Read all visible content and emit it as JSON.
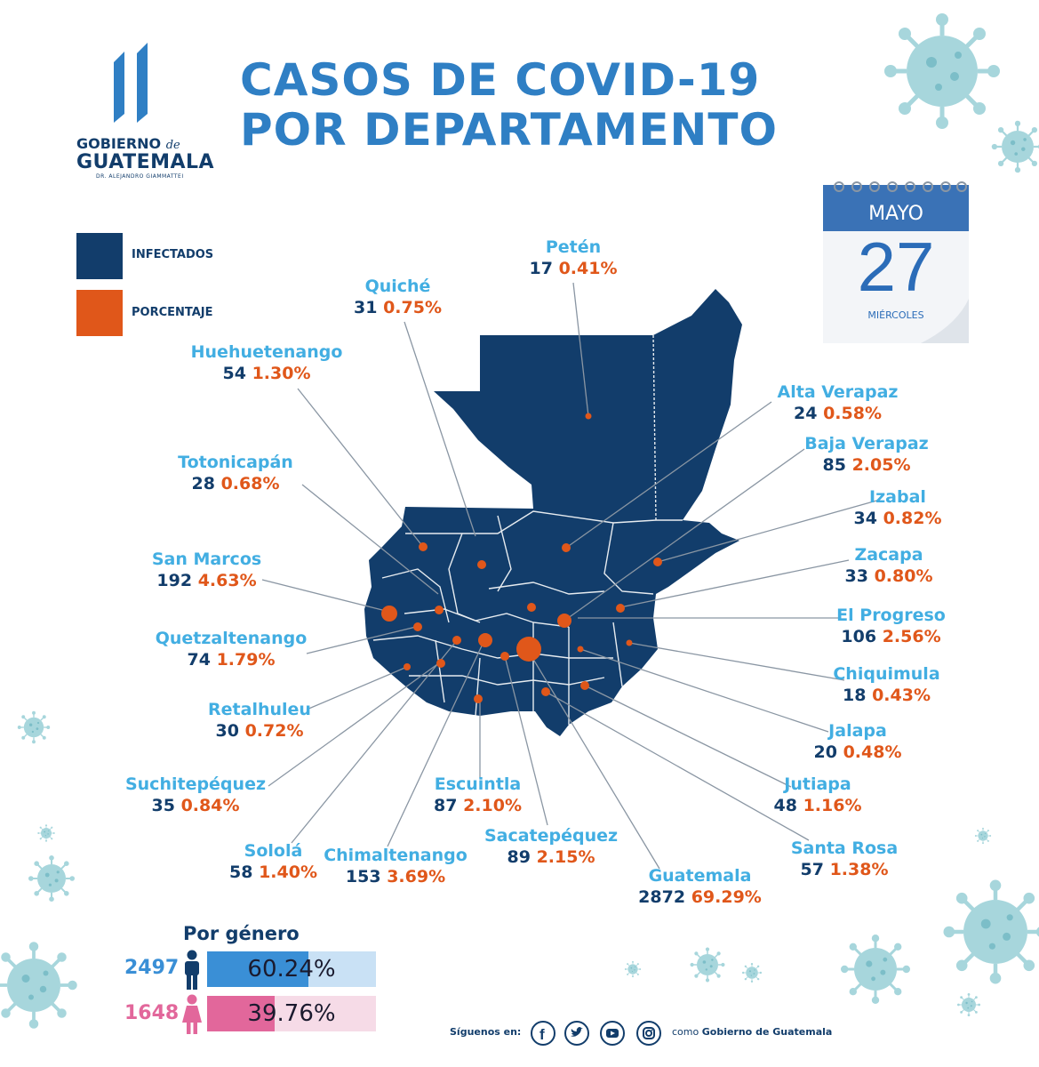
{
  "title": {
    "line1": "CASOS DE COVID-19",
    "line2": "POR DEPARTAMENTO"
  },
  "logo": {
    "line1": "GOBIERNO",
    "line1_small": "de",
    "line2": "GUATEMALA",
    "line3": "DR. ALEJANDRO GIAMMATTEI"
  },
  "legend": {
    "infected": {
      "label": "INFECTADOS",
      "color": "#123d6b"
    },
    "percent": {
      "label": "PORCENTAJE",
      "color": "#e0571a"
    }
  },
  "calendar": {
    "month": "MAYO",
    "day": "27",
    "weekday": "MIÉRCOLES"
  },
  "departments": [
    {
      "name": "Petén",
      "infected": "17",
      "percent": "0.41%"
    },
    {
      "name": "Quiché",
      "infected": "31",
      "percent": "0.75%"
    },
    {
      "name": "Huehuetenango",
      "infected": "54",
      "percent": "1.30%"
    },
    {
      "name": "Totonicapán",
      "infected": "28",
      "percent": "0.68%"
    },
    {
      "name": "San Marcos",
      "infected": "192",
      "percent": "4.63%"
    },
    {
      "name": "Quetzaltenango",
      "infected": "74",
      "percent": "1.79%"
    },
    {
      "name": "Retalhuleu",
      "infected": "30",
      "percent": "0.72%"
    },
    {
      "name": "Suchitepéquez",
      "infected": "35",
      "percent": "0.84%"
    },
    {
      "name": "Sololá",
      "infected": "58",
      "percent": "1.40%"
    },
    {
      "name": "Chimaltenango",
      "infected": "153",
      "percent": "3.69%"
    },
    {
      "name": "Escuintla",
      "infected": "87",
      "percent": "2.10%"
    },
    {
      "name": "Sacatepéquez",
      "infected": "89",
      "percent": "2.15%"
    },
    {
      "name": "Guatemala",
      "infected": "2872",
      "percent": "69.29%"
    },
    {
      "name": "Santa Rosa",
      "infected": "57",
      "percent": "1.38%"
    },
    {
      "name": "Jutiapa",
      "infected": "48",
      "percent": "1.16%"
    },
    {
      "name": "Jalapa",
      "infected": "20",
      "percent": "0.48%"
    },
    {
      "name": "Chiquimula",
      "infected": "18",
      "percent": "0.43%"
    },
    {
      "name": "El Progreso",
      "infected": "106",
      "percent": "2.56%"
    },
    {
      "name": "Zacapa",
      "infected": "33",
      "percent": "0.80%"
    },
    {
      "name": "Izabal",
      "infected": "34",
      "percent": "0.82%"
    },
    {
      "name": "Baja Verapaz",
      "infected": "85",
      "percent": "2.05%"
    },
    {
      "name": "Alta Verapaz",
      "infected": "24",
      "percent": "0.58%"
    }
  ],
  "gender": {
    "title": "Por género",
    "male": {
      "count": "2497",
      "percent_label": "60.24%",
      "fraction": 0.6024,
      "color": "#3a8fd6"
    },
    "female": {
      "count": "1648",
      "percent_label": "39.76%",
      "fraction": 0.3976,
      "color": "#e2679b"
    }
  },
  "social": {
    "label": "Síguenos en:",
    "como": "como",
    "account": "Gobierno de Guatemala",
    "icons": [
      "facebook-icon",
      "twitter-icon",
      "youtube-icon",
      "instagram-icon"
    ]
  }
}
